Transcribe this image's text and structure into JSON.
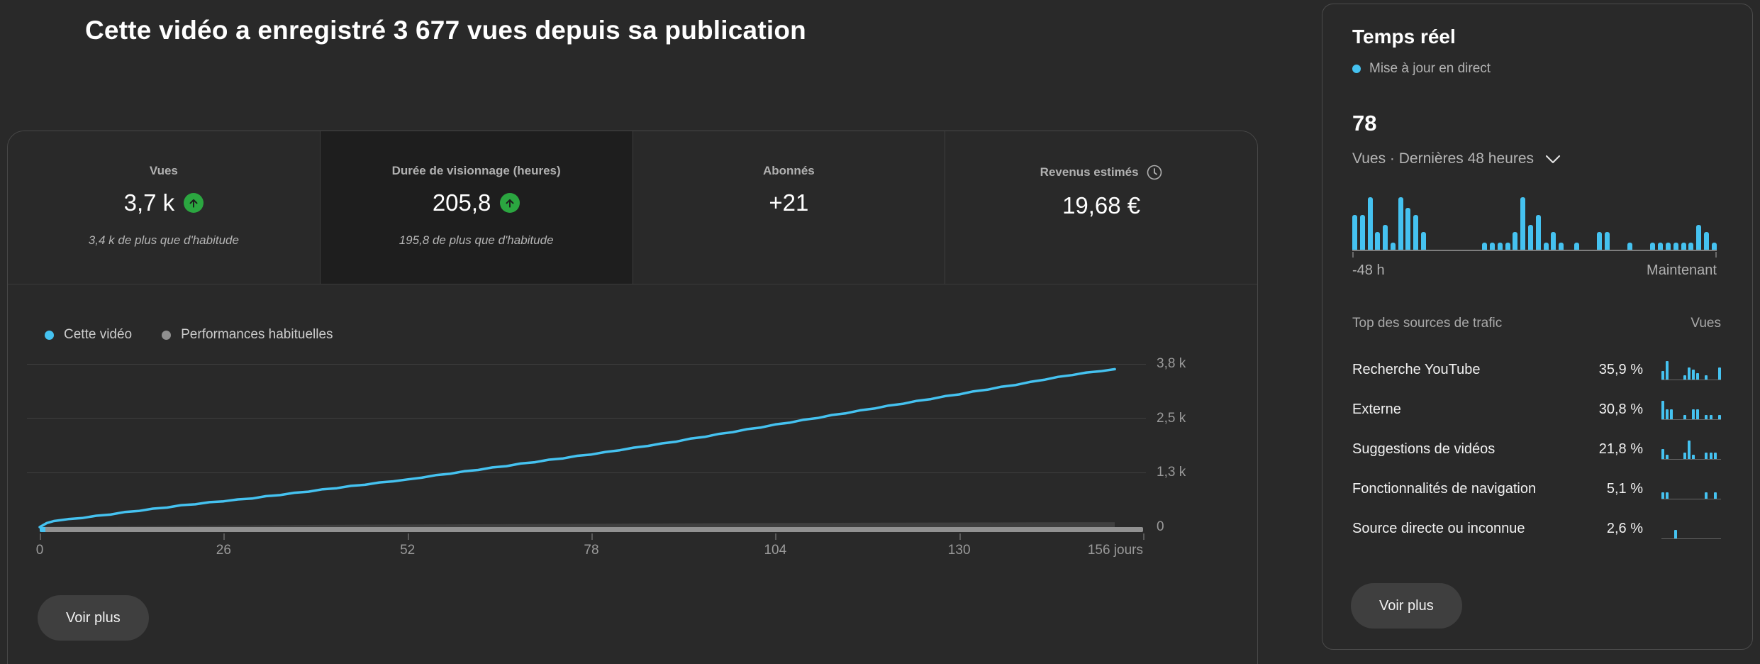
{
  "header": {
    "title": "Cette vidéo a enregistré 3 677 vues depuis sa publication"
  },
  "metrics": {
    "tabs": [
      {
        "label": "Vues",
        "value": "3,7 k",
        "trend": "up",
        "sub": "3,4 k de plus que d'habitude",
        "selected": false
      },
      {
        "label": "Durée de visionnage (heures)",
        "value": "205,8",
        "trend": "up",
        "sub": "195,8 de plus que d'habitude",
        "selected": true
      },
      {
        "label": "Abonnés",
        "value": "+21",
        "trend": null,
        "sub": "",
        "selected": false
      },
      {
        "label": "Revenus estimés",
        "value": "19,68 €",
        "trend": null,
        "sub": "",
        "selected": false,
        "info_icon": "clock"
      }
    ]
  },
  "footer": {
    "see_more_label": "Voir plus"
  },
  "realtime": {
    "title": "Temps réel",
    "live_label": "Mise à jour en direct",
    "views_value": "78",
    "views_caption": "Vues · Dernières 48 heures",
    "sources": {
      "header_left": "Top des sources de trafic",
      "header_right": "Vues",
      "rows": [
        {
          "name": "Recherche YouTube",
          "pct": "35,9 %"
        },
        {
          "name": "Externe",
          "pct": "30,8 %"
        },
        {
          "name": "Suggestions de vidéos",
          "pct": "21,8 %"
        },
        {
          "name": "Fonctionnalités de navigation",
          "pct": "5,1 %"
        },
        {
          "name": "Source directe ou inconnue",
          "pct": "2,6 %"
        }
      ]
    },
    "see_more_label": "Voir plus"
  },
  "colors": {
    "accent_blue": "#45c2f0",
    "trend_green": "#2ba640",
    "habitual_gray": "#8f8f8f",
    "habitual_area": "#3f3f3f"
  },
  "chart_data": [
    {
      "id": "video-performance",
      "type": "line",
      "title": "Vues depuis la publication",
      "xlabel": "jours",
      "ylabel": "Vues",
      "xlim": [
        0,
        156
      ],
      "ylim": [
        0,
        3800
      ],
      "grid": "horizontal",
      "legend_position": "top-left",
      "x_ticks": [
        0,
        26,
        52,
        78,
        104,
        130,
        156
      ],
      "x_tick_labels": [
        "0",
        "26",
        "52",
        "78",
        "104",
        "130",
        "156 jours"
      ],
      "y_ticks": [
        0,
        1267,
        2533,
        3800
      ],
      "y_tick_labels": [
        "0",
        "1,3 k",
        "2,5 k",
        "3,8 k"
      ],
      "series": [
        {
          "name": "Cette vidéo",
          "color": "#45c2f0",
          "style": "line",
          "points": [
            [
              0,
              0
            ],
            [
              1,
              95
            ],
            [
              2,
              140
            ],
            [
              4,
              185
            ],
            [
              6,
              210
            ],
            [
              8,
              265
            ],
            [
              10,
              290
            ],
            [
              12,
              350
            ],
            [
              14,
              375
            ],
            [
              16,
              430
            ],
            [
              18,
              455
            ],
            [
              20,
              510
            ],
            [
              22,
              530
            ],
            [
              24,
              580
            ],
            [
              26,
              600
            ],
            [
              28,
              645
            ],
            [
              30,
              665
            ],
            [
              32,
              720
            ],
            [
              34,
              745
            ],
            [
              36,
              800
            ],
            [
              38,
              825
            ],
            [
              40,
              880
            ],
            [
              42,
              905
            ],
            [
              44,
              960
            ],
            [
              46,
              985
            ],
            [
              48,
              1040
            ],
            [
              50,
              1065
            ],
            [
              52,
              1110
            ],
            [
              54,
              1150
            ],
            [
              56,
              1210
            ],
            [
              58,
              1240
            ],
            [
              60,
              1300
            ],
            [
              62,
              1330
            ],
            [
              64,
              1390
            ],
            [
              66,
              1420
            ],
            [
              68,
              1480
            ],
            [
              70,
              1510
            ],
            [
              72,
              1570
            ],
            [
              74,
              1600
            ],
            [
              76,
              1660
            ],
            [
              78,
              1690
            ],
            [
              80,
              1750
            ],
            [
              82,
              1790
            ],
            [
              84,
              1850
            ],
            [
              86,
              1890
            ],
            [
              88,
              1950
            ],
            [
              90,
              1990
            ],
            [
              92,
              2060
            ],
            [
              94,
              2100
            ],
            [
              96,
              2170
            ],
            [
              98,
              2210
            ],
            [
              100,
              2280
            ],
            [
              102,
              2320
            ],
            [
              104,
              2390
            ],
            [
              106,
              2430
            ],
            [
              108,
              2500
            ],
            [
              110,
              2540
            ],
            [
              112,
              2610
            ],
            [
              114,
              2650
            ],
            [
              116,
              2720
            ],
            [
              118,
              2760
            ],
            [
              120,
              2830
            ],
            [
              122,
              2870
            ],
            [
              124,
              2940
            ],
            [
              126,
              2980
            ],
            [
              128,
              3050
            ],
            [
              130,
              3090
            ],
            [
              132,
              3160
            ],
            [
              134,
              3200
            ],
            [
              136,
              3270
            ],
            [
              138,
              3310
            ],
            [
              140,
              3380
            ],
            [
              142,
              3430
            ],
            [
              144,
              3500
            ],
            [
              146,
              3540
            ],
            [
              148,
              3600
            ],
            [
              150,
              3630
            ],
            [
              152,
              3677
            ]
          ]
        },
        {
          "name": "Performances habituelles",
          "color": "#3f3f3f",
          "legend_color": "#8f8f8f",
          "style": "area",
          "points": [
            [
              0,
              8
            ],
            [
              20,
              32
            ],
            [
              40,
              52
            ],
            [
              60,
              66
            ],
            [
              80,
              80
            ],
            [
              100,
              92
            ],
            [
              120,
              102
            ],
            [
              140,
              110
            ],
            [
              152,
              114
            ]
          ]
        }
      ]
    },
    {
      "id": "realtime-views",
      "type": "bar",
      "title": "Vues · Dernières 48 heures",
      "x_left_label": "-48 h",
      "x_right_label": "Maintenant",
      "ylim": [
        0,
        15
      ],
      "color": "#45c2f0",
      "values": [
        10,
        10,
        15,
        5,
        7,
        2,
        15,
        12,
        10,
        5,
        0,
        0,
        0,
        0,
        0,
        0,
        0,
        2,
        2,
        2,
        2,
        5,
        15,
        7,
        10,
        2,
        5,
        2,
        0,
        2,
        0,
        0,
        5,
        5,
        0,
        0,
        2,
        0,
        0,
        2,
        2,
        2,
        2,
        2,
        2,
        7,
        5,
        2
      ]
    },
    {
      "id": "traffic-source-sparklines",
      "type": "bar-multi",
      "ylim": [
        0,
        10
      ],
      "series": [
        {
          "name": "Recherche YouTube",
          "values": [
            4,
            9,
            0,
            0,
            0,
            2,
            6,
            5,
            3,
            0,
            2,
            0,
            0,
            6
          ]
        },
        {
          "name": "Externe",
          "values": [
            9,
            5,
            5,
            0,
            0,
            2,
            0,
            5,
            5,
            0,
            2,
            2,
            0,
            2
          ]
        },
        {
          "name": "Suggestions de vidéos",
          "values": [
            5,
            2,
            0,
            0,
            0,
            3,
            9,
            2,
            0,
            0,
            3,
            3,
            3,
            0
          ]
        },
        {
          "name": "Fonctionnalités de navigation",
          "values": [
            3,
            3,
            0,
            0,
            0,
            0,
            0,
            0,
            0,
            0,
            3,
            0,
            3,
            0
          ]
        },
        {
          "name": "Source directe ou inconnue",
          "values": [
            0,
            0,
            0,
            4,
            0,
            0,
            0,
            0,
            0,
            0,
            0,
            0,
            0,
            0
          ]
        }
      ]
    }
  ]
}
